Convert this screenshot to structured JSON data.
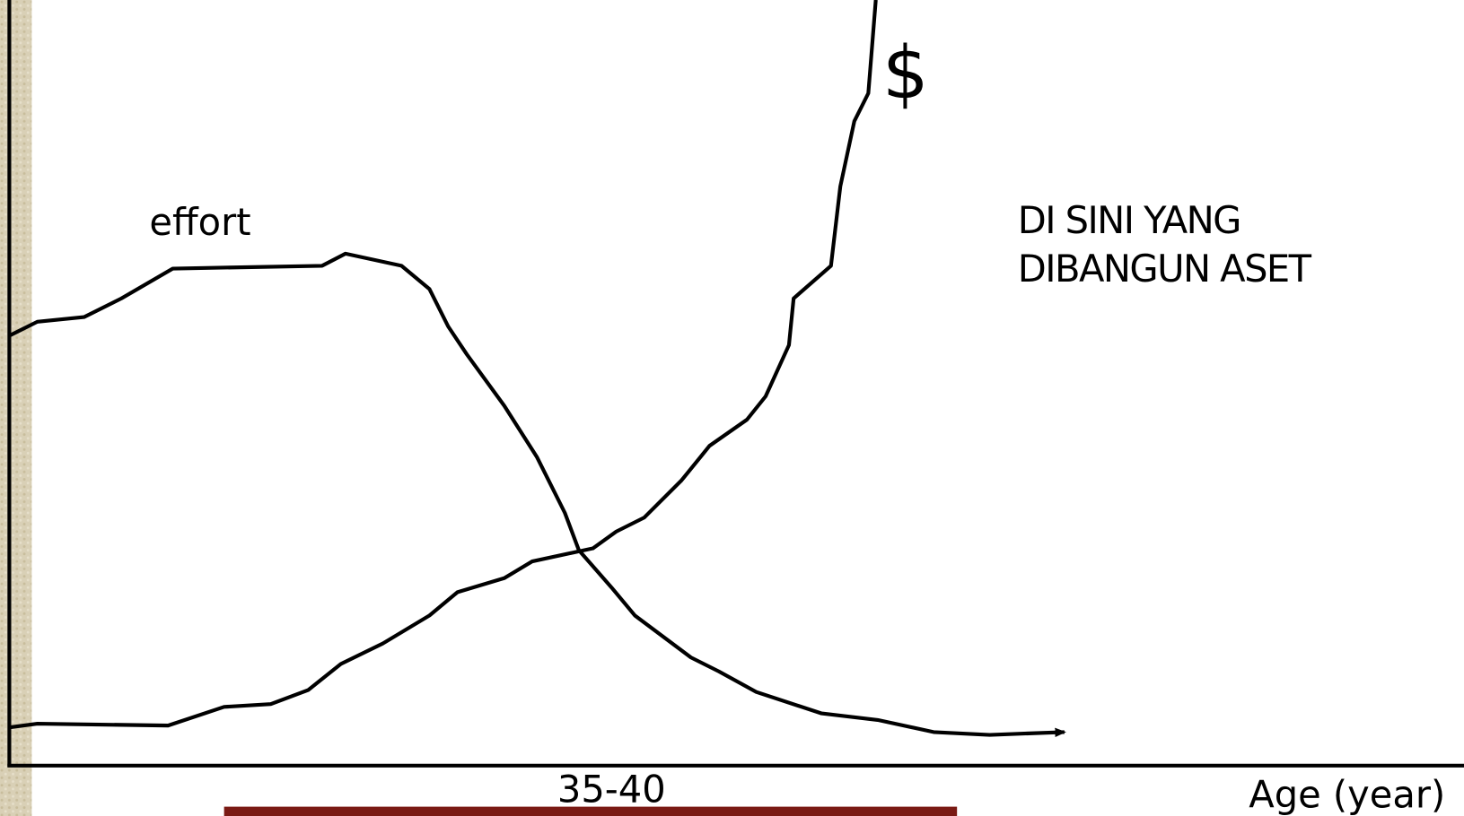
{
  "labels": {
    "effort": "effort",
    "money": "$",
    "annotation": [
      "DI SINI YANG",
      "DIBANGUN ASET"
    ],
    "age_range": "35-40",
    "x_axis": "Age (year)"
  }
}
